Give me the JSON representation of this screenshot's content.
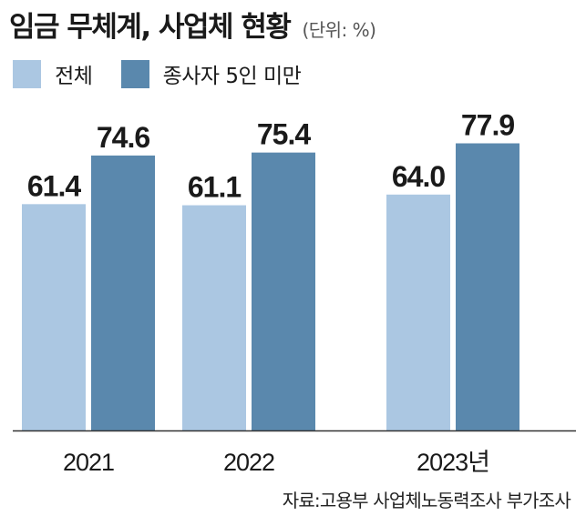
{
  "header": {
    "title": "임금 무체계, 사업체 현황",
    "unit": "(단위: %)"
  },
  "legend": [
    {
      "label": "전체",
      "color": "#abc7e2"
    },
    {
      "label": "종사자 5인 미만",
      "color": "#5a88ad"
    }
  ],
  "chart_data": {
    "type": "bar",
    "categories": [
      "2021",
      "2022",
      "2023년"
    ],
    "series": [
      {
        "name": "전체",
        "values": [
          61.4,
          61.1,
          64.0
        ],
        "labels": [
          "61.4",
          "61.1",
          "64.0"
        ],
        "color": "#abc7e2"
      },
      {
        "name": "종사자 5인 미만",
        "values": [
          74.6,
          75.4,
          77.9
        ],
        "labels": [
          "74.6",
          "75.4",
          "77.9"
        ],
        "color": "#5a88ad"
      }
    ],
    "ylim": [
      0,
      100
    ],
    "grid": false,
    "legend_position": "top-left"
  },
  "footer": {
    "source": "자료:고용부 사업체노동력조사 부가조사"
  }
}
